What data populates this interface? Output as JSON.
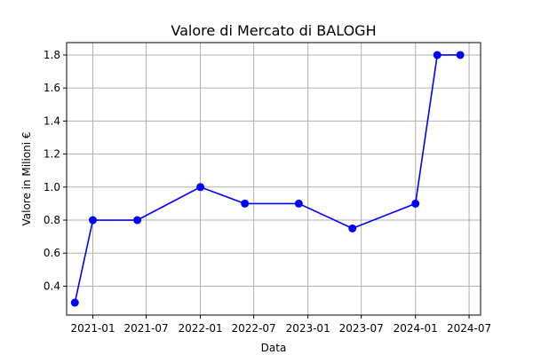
{
  "chart_data": {
    "type": "line",
    "title": "Valore di Mercato di BALOGH",
    "xlabel": "Data",
    "ylabel": "Valore in Milioni €",
    "grid": true,
    "line_color": "#0000ff",
    "marker_color": "#0000ff",
    "grid_color": "#b0b0b0",
    "x_ticks": [
      "2021-01",
      "2021-07",
      "2022-01",
      "2022-07",
      "2023-01",
      "2023-07",
      "2024-01",
      "2024-07"
    ],
    "y_ticks": [
      "0.4",
      "0.6",
      "0.8",
      "1.0",
      "1.2",
      "1.4",
      "1.6",
      "1.8"
    ],
    "xlim": [
      "2020-10-04",
      "2024-08-09"
    ],
    "ylim": [
      0.225,
      1.875
    ],
    "series": [
      {
        "x": [
          "2020-11-01",
          "2021-01-01",
          "2021-06-01",
          "2022-01-01",
          "2022-06-01",
          "2022-12-01",
          "2023-06-01",
          "2024-01-01",
          "2024-03-15",
          "2024-06-01"
        ],
        "y": [
          0.3,
          0.8,
          0.8,
          1.0,
          0.9,
          0.9,
          0.75,
          0.9,
          1.8,
          1.8
        ]
      }
    ]
  }
}
